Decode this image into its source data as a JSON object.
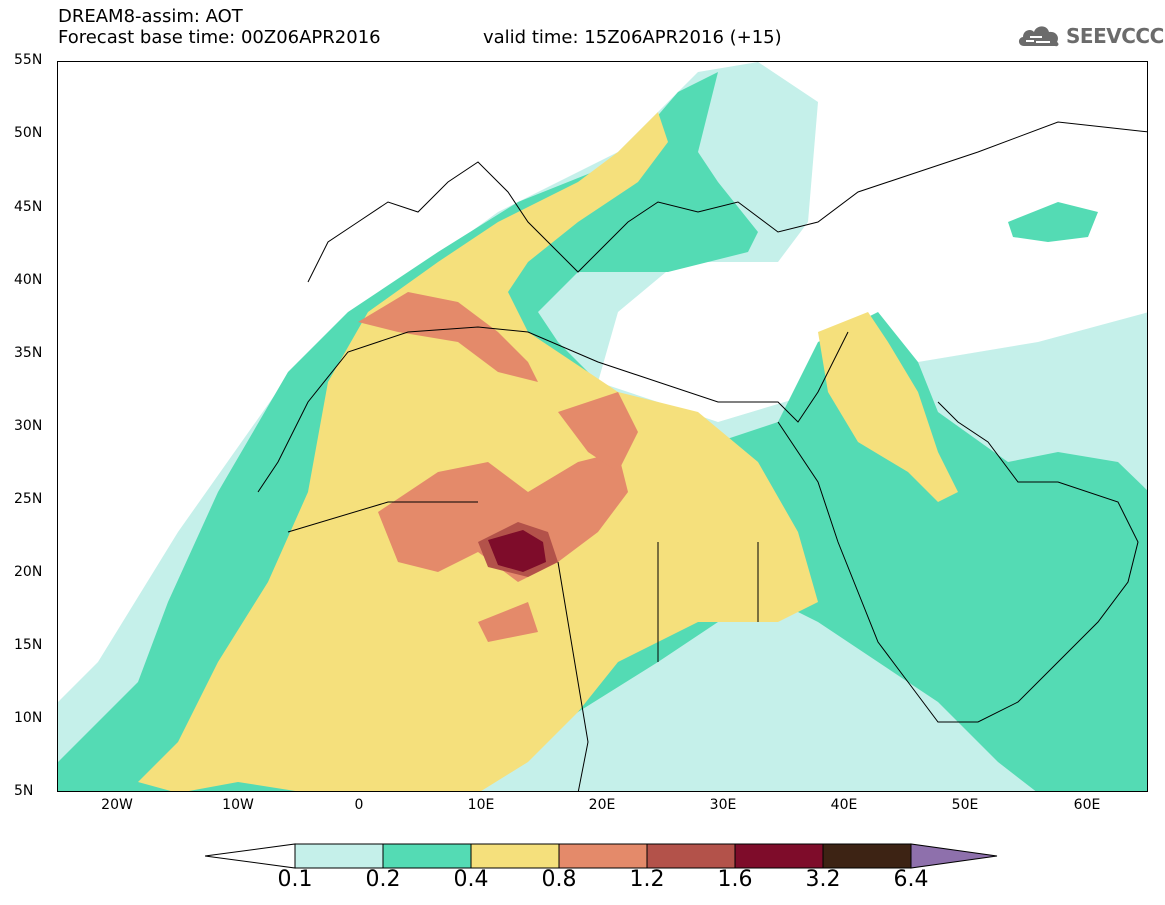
{
  "header": {
    "title": "DREAM8-assim: AOT",
    "base_time": "Forecast base time: 00Z06APR2016",
    "valid_time": "valid time: 15Z06APR2016 (+15)"
  },
  "logo": {
    "text": "SEEVCCC",
    "icon": "cloud-icon"
  },
  "map": {
    "lat_labels": [
      "55N",
      "50N",
      "45N",
      "40N",
      "35N",
      "30N",
      "25N",
      "20N",
      "15N",
      "10N",
      "5N"
    ],
    "lon_labels": [
      "20W",
      "10W",
      "0",
      "10E",
      "20E",
      "30E",
      "40E",
      "50E",
      "60E"
    ],
    "extent": {
      "lon_min": -25,
      "lon_max": 65,
      "lat_min": 5,
      "lat_max": 55
    }
  },
  "colorbar": {
    "levels": [
      "0.1",
      "0.2",
      "0.4",
      "0.8",
      "1.2",
      "1.6",
      "3.2",
      "6.4"
    ],
    "colors": [
      "#c5f0ea",
      "#54dbb4",
      "#f5e07c",
      "#e48a6a",
      "#b3524a",
      "#7e0c2a",
      "#3d2314",
      "#8e70ac"
    ]
  },
  "colors": {
    "aot_0_1": "#c5f0ea",
    "aot_0_2": "#54dbb4",
    "aot_0_4": "#f5e07c",
    "aot_0_8": "#e48a6a",
    "aot_1_2": "#b3524a",
    "aot_1_6": "#7e0c2a",
    "aot_3_2": "#3d2314"
  }
}
